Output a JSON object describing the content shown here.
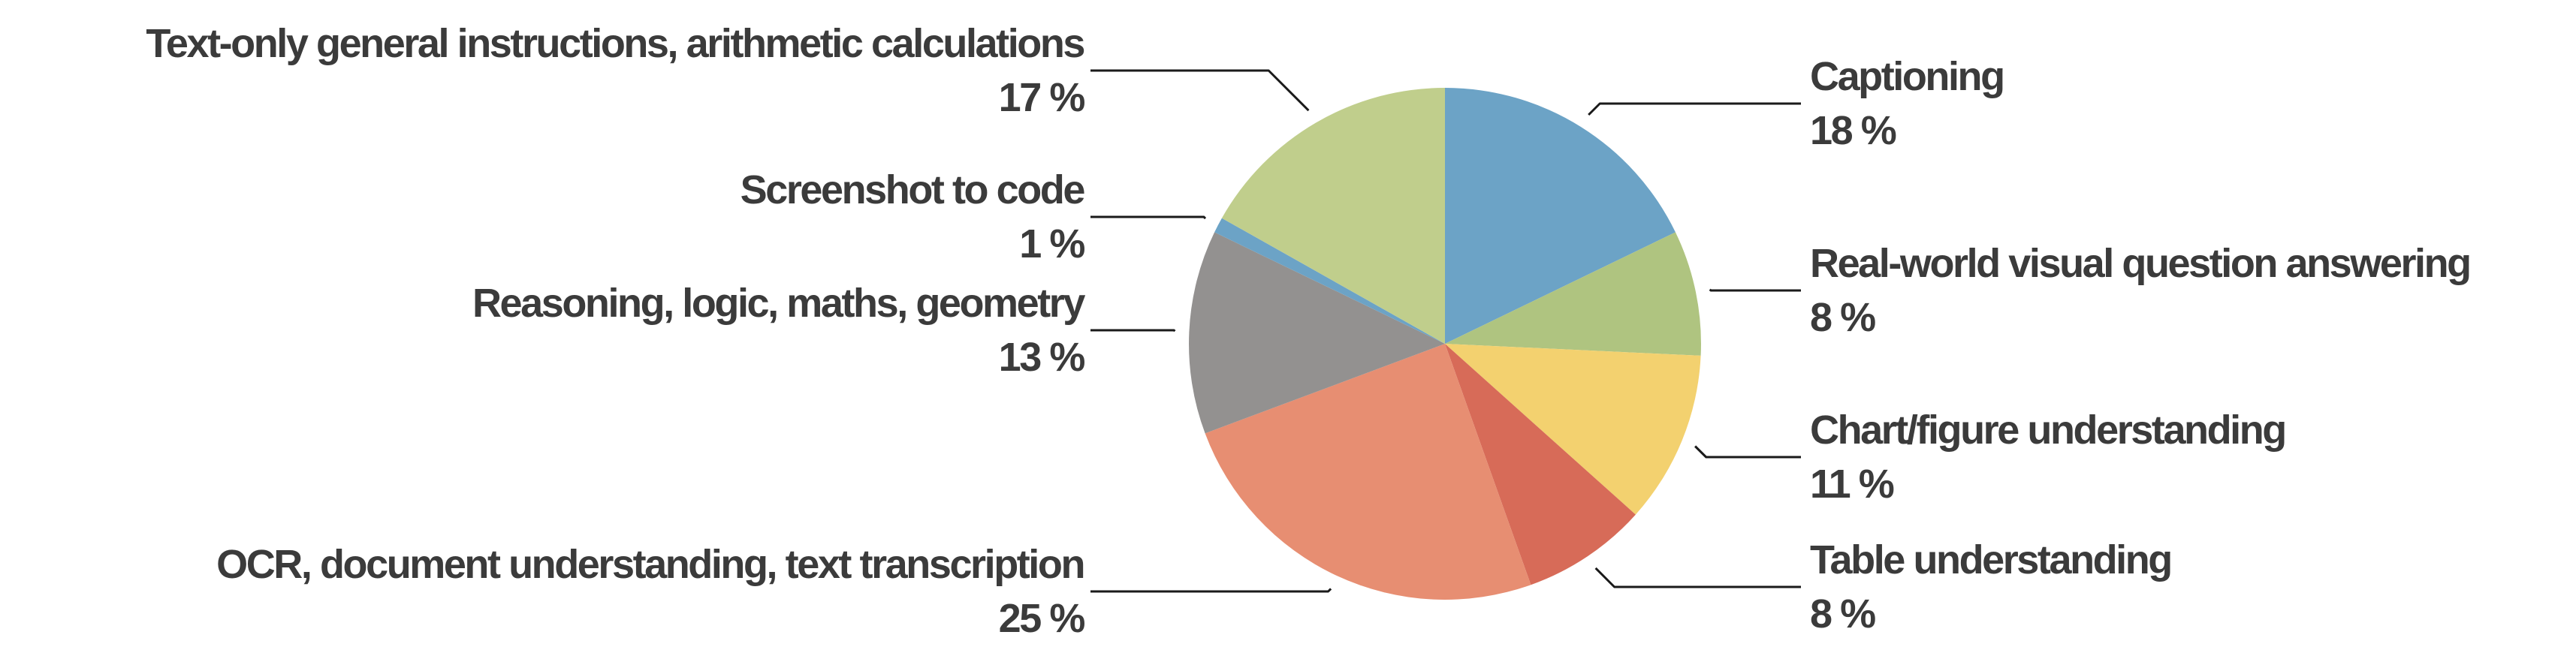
{
  "chart_data": {
    "type": "pie",
    "title": "",
    "legend_position": "none",
    "value_unit": "%",
    "start_angle_deg": 0,
    "direction": "clockwise",
    "background_color": "#FFFFFF",
    "text_color": "#3B3B3B",
    "leader_line_color": "#1A1A1A",
    "slices": [
      {
        "key": "captioning",
        "label": "Captioning",
        "value": 18,
        "pct_label": "18 %",
        "color": "#6CA3C6",
        "side": "right"
      },
      {
        "key": "real-world-vqa",
        "label": "Real-world visual question answering",
        "value": 8,
        "pct_label": "8 %",
        "color": "#AFC480",
        "side": "right"
      },
      {
        "key": "chart-figure",
        "label": "Chart/figure understanding",
        "value": 11,
        "pct_label": "11 %",
        "color": "#F3D16F",
        "side": "right"
      },
      {
        "key": "table-understanding",
        "label": "Table understanding",
        "value": 8,
        "pct_label": "8 %",
        "color": "#D76B58",
        "side": "right"
      },
      {
        "key": "ocr-documents",
        "label": "OCR, document understanding, text transcription",
        "value": 25,
        "pct_label": "25 %",
        "color": "#E78E72",
        "side": "left"
      },
      {
        "key": "reasoning",
        "label": "Reasoning, logic, maths, geometry",
        "value": 13,
        "pct_label": "13 %",
        "color": "#939190",
        "side": "left"
      },
      {
        "key": "screenshot-to-code",
        "label": "Screenshot to code",
        "value": 1,
        "pct_label": "1 %",
        "color": "#6CA3C6",
        "side": "left"
      },
      {
        "key": "text-only",
        "label": "Text-only general instructions, arithmetic calculations",
        "value": 17,
        "pct_label": "17 %",
        "color": "#C0CE8C",
        "side": "left"
      }
    ]
  }
}
